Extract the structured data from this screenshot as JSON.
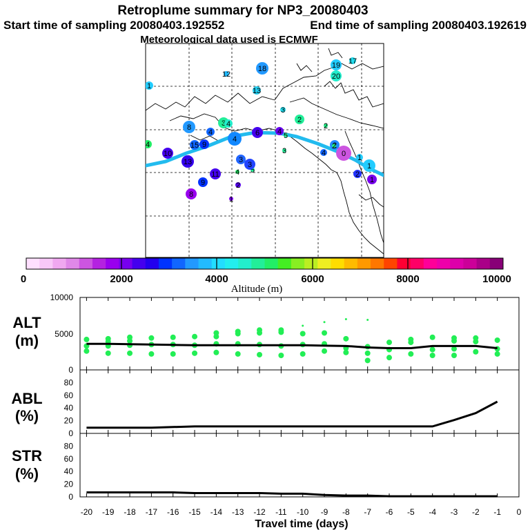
{
  "header": {
    "title": "Retroplume summary for NP3_20080403",
    "start": "Start time of sampling 20080403.192552",
    "end": "End time of sampling 20080403.192619",
    "met": "Meteorological data used is ECMWF"
  },
  "colors": {
    "track": "#22bbee",
    "scatter": "#22ee55",
    "line": "#000000"
  },
  "colorbar": {
    "label": "Altitude (m)",
    "ticks": [
      "0",
      "2000",
      "4000",
      "6000",
      "8000",
      "10000"
    ],
    "range": [
      0,
      10000
    ],
    "colors": [
      "#ffe0ff",
      "#f8c8f8",
      "#f0a8f0",
      "#e088e8",
      "#cc55e0",
      "#b422e0",
      "#9900ee",
      "#7700ee",
      "#4400ee",
      "#2200ee",
      "#0033ff",
      "#1166ff",
      "#2299ff",
      "#22bbff",
      "#22ddff",
      "#22eeee",
      "#22eecc",
      "#22ee99",
      "#22ee66",
      "#44ee22",
      "#88ee22",
      "#bbee22",
      "#eeee22",
      "#ffdd00",
      "#ffbb00",
      "#ff9900",
      "#ff7700",
      "#ff4400",
      "#ff0033",
      "#ff0066",
      "#ff0099",
      "#ee00aa",
      "#dd00aa",
      "#cc0099",
      "#aa0088",
      "#880077"
    ]
  },
  "map": {
    "labels": [
      {
        "n": "18",
        "c": "#2299ff"
      },
      {
        "n": "12",
        "c": "#22bbff"
      },
      {
        "n": "19",
        "c": "#22ccff"
      },
      {
        "n": "17",
        "c": "#22ddee"
      },
      {
        "n": "20",
        "c": "#22eecc"
      },
      {
        "n": "1",
        "c": "#22ccff"
      },
      {
        "n": "13",
        "c": "#22ccee"
      },
      {
        "n": "3",
        "c": "#22ddee"
      },
      {
        "n": "2",
        "c": "#22ee99"
      },
      {
        "n": "2",
        "c": "#22ee88"
      },
      {
        "n": "3",
        "c": "#22ee99"
      },
      {
        "n": "4",
        "c": "#22eecc"
      },
      {
        "n": "8",
        "c": "#2299ff"
      },
      {
        "n": "4",
        "c": "#1166ff"
      },
      {
        "n": "4",
        "c": "#22ee66"
      },
      {
        "n": "15",
        "c": "#1166ff"
      },
      {
        "n": "9",
        "c": "#0033ff"
      },
      {
        "n": "4",
        "c": "#1188ff"
      },
      {
        "n": "6",
        "c": "#4400ee"
      },
      {
        "n": "4",
        "c": "#6600ee"
      },
      {
        "n": "5",
        "c": "#22ee99"
      },
      {
        "n": "3",
        "c": "#22ee99"
      },
      {
        "n": "2",
        "c": "#2288ff"
      },
      {
        "n": "4",
        "c": "#1166ff"
      },
      {
        "n": "10",
        "c": "#4400ee"
      },
      {
        "n": "13",
        "c": "#3300ee"
      },
      {
        "n": "3",
        "c": "#2266ff"
      },
      {
        "n": "4",
        "c": "#22ee66"
      },
      {
        "n": "5",
        "c": "#22ee99"
      },
      {
        "n": "2",
        "c": "#22ee88"
      },
      {
        "n": "1",
        "c": "#22ccff"
      },
      {
        "n": "11",
        "c": "#4400ee"
      },
      {
        "n": "3",
        "c": "#2244ff"
      },
      {
        "n": "9",
        "c": "#0033ff"
      },
      {
        "n": "2",
        "c": "#5500ee"
      },
      {
        "n": "1",
        "c": "#7700ee"
      },
      {
        "n": "8",
        "c": "#9900ee"
      },
      {
        "n": "0",
        "c": "#cc55e0"
      },
      {
        "n": "1",
        "c": "#22ccff"
      },
      {
        "n": "1",
        "c": "#7700ee"
      },
      {
        "n": "2",
        "c": "#2233ff"
      }
    ]
  },
  "chart_data": [
    {
      "type": "scatter",
      "name": "ALT",
      "ylabel": "ALT",
      "yunit": "(m)",
      "ylim": [
        0,
        10000
      ],
      "yticks": [
        "10000",
        "5000",
        "0"
      ],
      "xlim": [
        -20,
        0
      ],
      "mean_line": {
        "x": [
          -20,
          -19,
          -18,
          -17,
          -16,
          -15,
          -14,
          -13,
          -12,
          -11,
          -10,
          -9,
          -8,
          -7,
          -6,
          -5,
          -4,
          -3,
          -2,
          -1
        ],
        "y": [
          3600,
          3600,
          3550,
          3500,
          3450,
          3400,
          3400,
          3400,
          3400,
          3400,
          3400,
          3350,
          3300,
          3100,
          3000,
          3000,
          3300,
          3300,
          3300,
          3000
        ]
      },
      "points": [
        [
          -20,
          2600
        ],
        [
          -20,
          3300
        ],
        [
          -20,
          4200
        ],
        [
          -19,
          2300
        ],
        [
          -19,
          3300
        ],
        [
          -19,
          3900
        ],
        [
          -19,
          4300
        ],
        [
          -18,
          2300
        ],
        [
          -18,
          3400
        ],
        [
          -18,
          4000
        ],
        [
          -18,
          4500
        ],
        [
          -17,
          2200
        ],
        [
          -17,
          3500
        ],
        [
          -17,
          4400
        ],
        [
          -16,
          2200
        ],
        [
          -16,
          3500
        ],
        [
          -16,
          4500
        ],
        [
          -15,
          2300
        ],
        [
          -15,
          3400
        ],
        [
          -15,
          4600
        ],
        [
          -14,
          2400
        ],
        [
          -14,
          3600
        ],
        [
          -14,
          4600
        ],
        [
          -14,
          5100
        ],
        [
          -13,
          2200
        ],
        [
          -13,
          3600
        ],
        [
          -13,
          5000
        ],
        [
          -13,
          5300
        ],
        [
          -12,
          2100
        ],
        [
          -12,
          3500
        ],
        [
          -12,
          5100
        ],
        [
          -12,
          5500
        ],
        [
          -11,
          2000
        ],
        [
          -11,
          3300
        ],
        [
          -11,
          5200
        ],
        [
          -11,
          5500
        ],
        [
          -10,
          2200
        ],
        [
          -10,
          3500
        ],
        [
          -10,
          5000
        ],
        [
          -10,
          6100
        ],
        [
          -9,
          2600
        ],
        [
          -9,
          3600
        ],
        [
          -9,
          5100
        ],
        [
          -9,
          6600
        ],
        [
          -8,
          2400
        ],
        [
          -8,
          3000
        ],
        [
          -8,
          4300
        ],
        [
          -8,
          7000
        ],
        [
          -7,
          1300
        ],
        [
          -7,
          2300
        ],
        [
          -7,
          3200
        ],
        [
          -7,
          6900
        ],
        [
          -6,
          1700
        ],
        [
          -6,
          2800
        ],
        [
          -6,
          3800
        ],
        [
          -5,
          2200
        ],
        [
          -5,
          3800
        ],
        [
          -5,
          4200
        ],
        [
          -4,
          2000
        ],
        [
          -4,
          2800
        ],
        [
          -4,
          4500
        ],
        [
          -3,
          2000
        ],
        [
          -3,
          2900
        ],
        [
          -3,
          4000
        ],
        [
          -3,
          4400
        ],
        [
          -2,
          2500
        ],
        [
          -2,
          3900
        ],
        [
          -2,
          4400
        ],
        [
          -1,
          2200
        ],
        [
          -1,
          2900
        ],
        [
          -1,
          4100
        ]
      ]
    },
    {
      "type": "line",
      "name": "ABL",
      "ylabel": "ABL",
      "yunit": "(%)",
      "ylim": [
        0,
        100
      ],
      "yticks": [
        "80",
        "60",
        "40",
        "20",
        "0"
      ],
      "x": [
        -20,
        -19,
        -18,
        -17,
        -16,
        -15,
        -14,
        -13,
        -12,
        -11,
        -10,
        -9,
        -8,
        -7,
        -6,
        -5,
        -4,
        -3,
        -2,
        -1
      ],
      "values": [
        9,
        9,
        9,
        9,
        10,
        11,
        11,
        11,
        11,
        11,
        11,
        11,
        11,
        11,
        11,
        11,
        11,
        21,
        32,
        50
      ]
    },
    {
      "type": "line",
      "name": "STR",
      "ylabel": "STR",
      "yunit": "(%)",
      "ylim": [
        0,
        100
      ],
      "yticks": [
        "80",
        "60",
        "40",
        "20",
        "0"
      ],
      "x": [
        -20,
        -19,
        -18,
        -17,
        -16,
        -15,
        -14,
        -13,
        -12,
        -11,
        -10,
        -9,
        -8,
        -7,
        -6,
        -5,
        -4,
        -3,
        -2,
        -1
      ],
      "values": [
        7,
        7,
        7,
        7,
        7,
        6,
        6,
        6,
        6,
        5,
        5,
        3,
        2,
        2,
        1,
        1,
        1,
        1,
        1,
        1
      ],
      "xlabel": "Travel time (days)",
      "xticks": [
        "-20",
        "-19",
        "-18",
        "-17",
        "-16",
        "-15",
        "-14",
        "-13",
        "-12",
        "-11",
        "-10",
        "-9",
        "-8",
        "-7",
        "-6",
        "-5",
        "-4",
        "-3",
        "-2",
        "-1",
        "0"
      ]
    }
  ]
}
